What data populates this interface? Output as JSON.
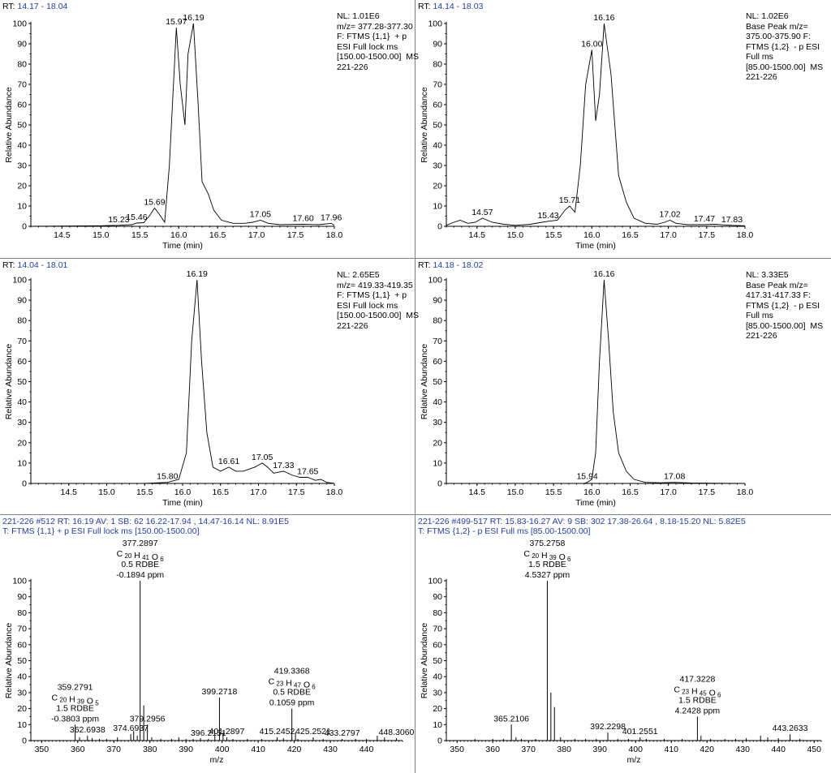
{
  "chart_data": [
    {
      "type": "line",
      "panel": "top-left",
      "rt_label": "RT:",
      "rt_range": "14.17 - 18.04",
      "info": [
        "NL: 1.01E6",
        "m/z= 377.28-377.30",
        "F: FTMS {1,1}  + p",
        "ESI Full lock ms",
        "[150.00-1500.00]  MS",
        "221-226"
      ],
      "xlabel": "Time (min)",
      "ylabel": "Relative Abundance",
      "xlim": [
        14.1,
        18.0
      ],
      "ylim": [
        0,
        100
      ],
      "xticks": [
        "14.5",
        "15.0",
        "15.5",
        "16.0",
        "16.5",
        "17.0",
        "17.5",
        "18.0"
      ],
      "yticks": [
        "0",
        "10",
        "20",
        "30",
        "40",
        "50",
        "60",
        "70",
        "80",
        "90",
        "100"
      ],
      "x": [
        14.1,
        15.0,
        15.23,
        15.4,
        15.46,
        15.55,
        15.62,
        15.69,
        15.75,
        15.82,
        15.88,
        15.97,
        16.02,
        16.08,
        16.12,
        16.19,
        16.25,
        16.3,
        16.38,
        16.45,
        16.55,
        16.7,
        16.85,
        16.95,
        17.05,
        17.15,
        17.3,
        17.6,
        17.8,
        17.96,
        18.0
      ],
      "y": [
        0,
        0.3,
        0.5,
        0.8,
        1.6,
        1.8,
        5,
        9,
        6,
        2,
        30,
        98,
        70,
        50,
        85,
        100,
        60,
        22,
        16,
        8,
        3,
        1.5,
        1.5,
        2,
        3,
        1.5,
        0.8,
        1,
        0.8,
        1.5,
        0.5
      ],
      "peak_labels": [
        {
          "x": 15.23,
          "y": 0.5,
          "label": "15.23"
        },
        {
          "x": 15.46,
          "y": 1.6,
          "label": "15.46"
        },
        {
          "x": 15.69,
          "y": 9,
          "label": "15.69"
        },
        {
          "x": 15.97,
          "y": 98,
          "label": "15.97"
        },
        {
          "x": 16.19,
          "y": 100,
          "label": "16.19"
        },
        {
          "x": 17.05,
          "y": 3,
          "label": "17.05"
        },
        {
          "x": 17.6,
          "y": 1,
          "label": "17.60"
        },
        {
          "x": 17.96,
          "y": 1.5,
          "label": "17.96"
        }
      ]
    },
    {
      "type": "line",
      "panel": "top-right",
      "rt_label": "RT:",
      "rt_range": "14.14 - 18.03",
      "info": [
        "NL: 1.02E6",
        "Base Peak m/z=",
        "375.00-375.90 F:",
        "FTMS {1,2}  - p ESI",
        "Full ms",
        "[85.00-1500.00]  MS",
        "221-226"
      ],
      "xlabel": "Time (min)",
      "ylabel": "Relative Abundance",
      "xlim": [
        14.1,
        18.0
      ],
      "ylim": [
        0,
        100
      ],
      "xticks": [
        "14.5",
        "15.0",
        "15.5",
        "16.0",
        "16.5",
        "17.0",
        "17.5",
        "18.0"
      ],
      "yticks": [
        "0",
        "10",
        "20",
        "30",
        "40",
        "50",
        "60",
        "70",
        "80",
        "90",
        "100"
      ],
      "x": [
        14.1,
        14.2,
        14.28,
        14.38,
        14.48,
        14.57,
        14.7,
        14.85,
        15.0,
        15.2,
        15.35,
        15.43,
        15.55,
        15.65,
        15.71,
        15.78,
        15.85,
        15.92,
        16.0,
        16.05,
        16.1,
        16.16,
        16.25,
        16.35,
        16.45,
        16.55,
        16.7,
        16.85,
        16.95,
        17.02,
        17.1,
        17.25,
        17.47,
        17.6,
        17.83,
        18.0
      ],
      "y": [
        0.5,
        2,
        3,
        1.5,
        2,
        4,
        2,
        1,
        0.5,
        1,
        2,
        2.5,
        3,
        8,
        10,
        7,
        30,
        70,
        87,
        52,
        65,
        100,
        75,
        25,
        12,
        4,
        1.5,
        1,
        2,
        3,
        1.5,
        0.8,
        0.8,
        1,
        0.5,
        0.3
      ],
      "peak_labels": [
        {
          "x": 14.57,
          "y": 4,
          "label": "14.57"
        },
        {
          "x": 15.43,
          "y": 2.5,
          "label": "15.43"
        },
        {
          "x": 15.71,
          "y": 10,
          "label": "15.71"
        },
        {
          "x": 16.0,
          "y": 87,
          "label": "16.00"
        },
        {
          "x": 16.16,
          "y": 100,
          "label": "16.16"
        },
        {
          "x": 17.02,
          "y": 3,
          "label": "17.02"
        },
        {
          "x": 17.47,
          "y": 0.8,
          "label": "17.47"
        },
        {
          "x": 17.83,
          "y": 0.5,
          "label": "17.83"
        }
      ]
    },
    {
      "type": "line",
      "panel": "middle-left",
      "rt_label": "RT:",
      "rt_range": "14.04 - 18.01",
      "info": [
        "NL: 2.65E5",
        "m/z= 419.33-419.35",
        "F: FTMS {1,1}  + p",
        "ESI Full lock ms",
        "[150.00-1500.00]  MS",
        "221-226"
      ],
      "xlabel": "Time (min)",
      "ylabel": "Relative Abundance",
      "xlim": [
        14.0,
        18.0
      ],
      "ylim": [
        0,
        100
      ],
      "xticks": [
        "14.5",
        "15.0",
        "15.5",
        "16.0",
        "16.5",
        "17.0",
        "17.5",
        "18.0"
      ],
      "yticks": [
        "0",
        "10",
        "20",
        "30",
        "40",
        "50",
        "60",
        "70",
        "80",
        "90",
        "100"
      ],
      "x": [
        14.0,
        15.5,
        15.8,
        15.95,
        16.05,
        16.12,
        16.19,
        16.25,
        16.32,
        16.4,
        16.5,
        16.61,
        16.7,
        16.8,
        16.95,
        17.05,
        17.12,
        17.2,
        17.33,
        17.45,
        17.55,
        17.65,
        17.75,
        17.82,
        17.9,
        18.0
      ],
      "y": [
        0,
        0,
        0.5,
        2,
        15,
        70,
        100,
        60,
        25,
        8,
        6,
        8,
        6,
        6,
        8,
        10,
        8,
        5,
        6,
        4,
        3,
        3,
        1.5,
        2,
        0.5,
        0
      ],
      "peak_labels": [
        {
          "x": 15.8,
          "y": 0.5,
          "label": "15.80"
        },
        {
          "x": 16.19,
          "y": 100,
          "label": "16.19"
        },
        {
          "x": 16.61,
          "y": 8,
          "label": "16.61"
        },
        {
          "x": 17.05,
          "y": 10,
          "label": "17.05"
        },
        {
          "x": 17.33,
          "y": 6,
          "label": "17.33"
        },
        {
          "x": 17.65,
          "y": 3,
          "label": "17.65"
        }
      ]
    },
    {
      "type": "line",
      "panel": "middle-right",
      "rt_label": "RT:",
      "rt_range": "14.18 - 18.02",
      "info": [
        "NL: 3.33E5",
        "Base Peak m/z=",
        "417.31-417.33 F:",
        "FTMS {1,2}  - p ESI",
        "Full ms",
        "[85.00-1500.00]  MS",
        "221-226"
      ],
      "xlabel": "Time (min)",
      "ylabel": "Relative Abundance",
      "xlim": [
        14.1,
        18.0
      ],
      "ylim": [
        0,
        100
      ],
      "xticks": [
        "14.5",
        "15.0",
        "15.5",
        "16.0",
        "16.5",
        "17.0",
        "17.5",
        "18.0"
      ],
      "yticks": [
        "0",
        "10",
        "20",
        "30",
        "40",
        "50",
        "60",
        "70",
        "80",
        "90",
        "100"
      ],
      "x": [
        14.1,
        15.9,
        15.94,
        16.0,
        16.05,
        16.1,
        16.16,
        16.22,
        16.28,
        16.35,
        16.45,
        16.55,
        16.7,
        16.9,
        17.08,
        17.3,
        18.0
      ],
      "y": [
        0,
        0,
        0.5,
        2,
        15,
        60,
        100,
        70,
        35,
        15,
        6,
        2,
        0.5,
        0.3,
        0.5,
        0.2,
        0
      ],
      "peak_labels": [
        {
          "x": 15.94,
          "y": 0.5,
          "label": "15.94"
        },
        {
          "x": 16.16,
          "y": 100,
          "label": "16.16"
        },
        {
          "x": 17.08,
          "y": 0.5,
          "label": "17.08"
        }
      ]
    },
    {
      "type": "bar",
      "panel": "bottom-left",
      "header_line1": "221-226 #512   RT:  16.19   AV:  1   SB:  62  16.22-17.94 , 14.47-16.14   NL:  8.91E5",
      "header_line2": "T:  FTMS {1,1}  + p ESI Full lock ms [150.00-1500.00]",
      "xlabel": "m/z",
      "ylabel": "Relative Abundance",
      "xlim": [
        347,
        450
      ],
      "ylim": [
        0,
        100
      ],
      "xticks": [
        "350",
        "360",
        "370",
        "380",
        "390",
        "400",
        "410",
        "420",
        "430",
        "440"
      ],
      "yticks": [
        "0",
        "10",
        "20",
        "30",
        "40",
        "50",
        "60",
        "70",
        "80",
        "90",
        "100"
      ],
      "x": [
        359.28,
        360.5,
        362.69,
        364,
        366,
        368,
        371,
        374.69,
        375.5,
        376.5,
        377.29,
        378.29,
        379.3,
        380.5,
        383,
        386,
        388,
        390,
        392,
        394,
        396.22,
        398,
        399.27,
        400.28,
        401.29,
        403,
        407,
        411,
        415.25,
        417,
        419.34,
        420.34,
        421,
        425.25,
        428,
        433.28,
        437,
        440,
        443,
        445,
        448.31
      ],
      "y": [
        10,
        2,
        3,
        1.5,
        1,
        1,
        2,
        4,
        6,
        3,
        100,
        22,
        10,
        2,
        1,
        1,
        2,
        1,
        1,
        1.5,
        1,
        3,
        27,
        5,
        2,
        1,
        1,
        1,
        2,
        1.5,
        20,
        5,
        1,
        2,
        1,
        1,
        1,
        1,
        3,
        2,
        1.5
      ],
      "labels": [
        {
          "x": 359.28,
          "y": 10,
          "lines": [
            "359.2791",
            "C20 H39 O5",
            "1.5 RDBE",
            "-0.3803 ppm"
          ]
        },
        {
          "x": 362.69,
          "y": 3,
          "lines": [
            "362.6938"
          ]
        },
        {
          "x": 374.69,
          "y": 4,
          "lines": [
            "374.6937"
          ]
        },
        {
          "x": 377.29,
          "y": 100,
          "lines": [
            "377.2897",
            "C20 H41 O6",
            "0.5 RDBE",
            "-0.1894 ppm"
          ]
        },
        {
          "x": 379.3,
          "y": 10,
          "lines": [
            "379.2956"
          ]
        },
        {
          "x": 396.22,
          "y": 1,
          "lines": [
            "396.2151"
          ]
        },
        {
          "x": 399.27,
          "y": 27,
          "lines": [
            "399.2718"
          ]
        },
        {
          "x": 401.29,
          "y": 2,
          "lines": [
            "401.2897"
          ]
        },
        {
          "x": 415.25,
          "y": 2,
          "lines": [
            "415.2452"
          ]
        },
        {
          "x": 419.34,
          "y": 20,
          "lines": [
            "419.3368",
            "C23 H47 O6",
            "0.5 RDBE",
            "0.1059 ppm"
          ]
        },
        {
          "x": 425.25,
          "y": 2,
          "lines": [
            "425.2521"
          ]
        },
        {
          "x": 433.28,
          "y": 1,
          "lines": [
            "433.2797"
          ]
        },
        {
          "x": 448.31,
          "y": 1.5,
          "lines": [
            "448.3060"
          ]
        }
      ]
    },
    {
      "type": "bar",
      "panel": "bottom-right",
      "header_line1": "221-226 #499-517   RT:  15.83-16.27   AV:  9   SB:  302  17.38-26.64 , 8.18-15.20   NL:  5.82E5",
      "header_line2": "T:  FTMS {1,2}  - p ESI Full ms [85.00-1500.00]",
      "xlabel": "m/z",
      "ylabel": "Relative Abundance",
      "xlim": [
        347,
        452
      ],
      "ylim": [
        0,
        100
      ],
      "xticks": [
        "350",
        "360",
        "370",
        "380",
        "390",
        "400",
        "410",
        "420",
        "430",
        "440",
        "450"
      ],
      "yticks": [
        "0",
        "10",
        "20",
        "30",
        "40",
        "50",
        "60",
        "70",
        "80",
        "90",
        "100"
      ],
      "x": [
        355,
        360,
        363,
        365.21,
        366.5,
        368,
        372,
        375.28,
        376.28,
        377.28,
        379,
        383,
        386,
        389,
        392.23,
        395,
        398,
        401.26,
        403,
        408,
        413,
        417.32,
        418.32,
        421,
        425,
        428,
        431,
        435,
        437,
        440,
        443.26,
        446
      ],
      "y": [
        1,
        1,
        1,
        10,
        2,
        1,
        1,
        100,
        30,
        21,
        2,
        1,
        1,
        1,
        5,
        1,
        1,
        2,
        1,
        1,
        1,
        15,
        3,
        1,
        1,
        1,
        1.5,
        3,
        2,
        1.5,
        4,
        1
      ],
      "labels": [
        {
          "x": 365.21,
          "y": 10,
          "lines": [
            "365.2106"
          ]
        },
        {
          "x": 375.28,
          "y": 100,
          "lines": [
            "375.2758",
            "C20 H39 O6",
            "1.5 RDBE",
            "4.5327 ppm"
          ]
        },
        {
          "x": 392.23,
          "y": 5,
          "lines": [
            "392.2298"
          ]
        },
        {
          "x": 401.26,
          "y": 2,
          "lines": [
            "401.2551"
          ]
        },
        {
          "x": 417.32,
          "y": 15,
          "lines": [
            "417.3228",
            "C23 H45 O6",
            "1.5 RDBE",
            "4.2428 ppm"
          ]
        },
        {
          "x": 443.26,
          "y": 4,
          "lines": [
            "443.2633"
          ]
        }
      ]
    }
  ]
}
